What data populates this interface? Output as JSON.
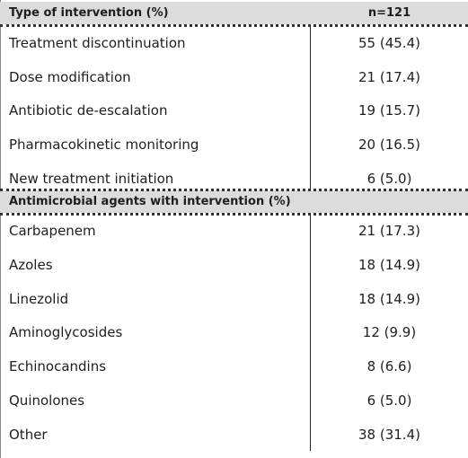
{
  "table": {
    "sections": [
      {
        "title": "Type of intervention (%)",
        "value": "n=121",
        "rows": [
          [
            "Treatment discontinuation",
            "55 (45.4)"
          ],
          [
            "Dose modification",
            "21 (17.4)"
          ],
          [
            "Antibiotic de-escalation",
            "19 (15.7)"
          ],
          [
            "Pharmacokinetic monitoring",
            "20 (16.5)"
          ],
          [
            "New treatment initiation",
            "6 (5.0)"
          ]
        ]
      },
      {
        "title": "Antimicrobial agents with intervention (%)",
        "rows": [
          [
            "Carbapenem",
            "21 (17.3)"
          ],
          [
            "Azoles",
            "18 (14.9)"
          ],
          [
            "Linezolid",
            "18 (14.9)"
          ],
          [
            "Aminoglycosides",
            "12 (9.9)"
          ],
          [
            "Echinocandins",
            "8 (6.6)"
          ],
          [
            "Quinolones",
            "6 (5.0)"
          ],
          [
            "Other",
            "38 (31.4)"
          ]
        ]
      }
    ]
  }
}
